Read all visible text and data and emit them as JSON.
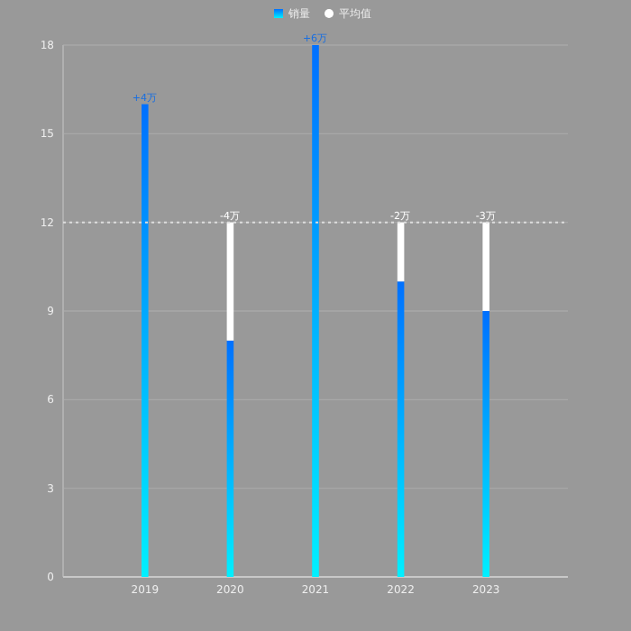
{
  "chart_data": {
    "type": "bar",
    "stacked": true,
    "categories": [
      "2019",
      "2020",
      "2021",
      "2022",
      "2023"
    ],
    "series": [
      {
        "name": "销量",
        "color": "#0070ff",
        "values": [
          16,
          8,
          18,
          10,
          9
        ]
      },
      {
        "name": "平均值",
        "color": "#ffffff",
        "values": [
          null,
          4,
          null,
          2,
          3
        ]
      }
    ],
    "ylim": [
      0,
      18
    ],
    "yticks": [
      0,
      3,
      6,
      9,
      12,
      15,
      18
    ],
    "grid": "y",
    "legend": "top",
    "ref_lines": [
      {
        "axis": "y",
        "value": 12,
        "color": "#dddddd",
        "line_style": "dotted"
      }
    ],
    "annotations": [
      {
        "text": "+4万",
        "x": "2019",
        "y": 16
      },
      {
        "text": "-4万",
        "x": "2020",
        "y": 12
      },
      {
        "text": "+6万",
        "x": "2021",
        "y": 18
      },
      {
        "text": "-2万",
        "x": "2022",
        "y": 12
      },
      {
        "text": "-3万",
        "x": "2023",
        "y": 12
      }
    ]
  }
}
